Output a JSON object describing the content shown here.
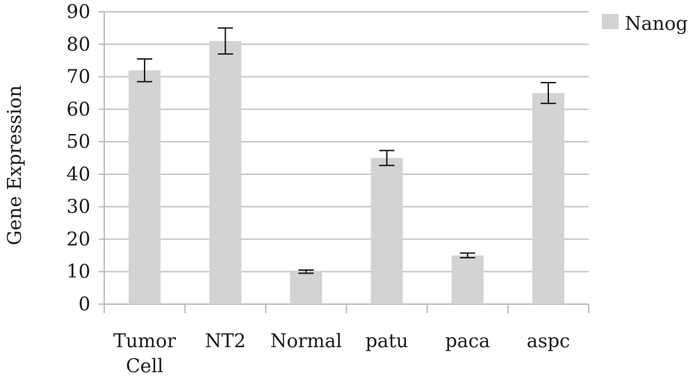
{
  "chart_data": {
    "type": "bar",
    "title": "",
    "xlabel": "",
    "ylabel": "Gene Expression",
    "ylim": [
      0,
      90
    ],
    "yticks": [
      "0",
      "10",
      "20",
      "30",
      "40",
      "50",
      "60",
      "70",
      "80",
      "90"
    ],
    "categories": [
      [
        "Tumor",
        "Cell"
      ],
      [
        "NT2"
      ],
      [
        "Normal"
      ],
      [
        "patu"
      ],
      [
        "paca"
      ],
      [
        "aspc"
      ]
    ],
    "series": [
      {
        "name": "Nanog",
        "values": [
          72,
          81,
          10,
          45,
          15,
          65
        ],
        "error": [
          3.5,
          4,
          0.5,
          2.3,
          0.7,
          3.2
        ],
        "color": "#d3d3d3"
      }
    ],
    "grid": true,
    "legend": "top-right"
  }
}
